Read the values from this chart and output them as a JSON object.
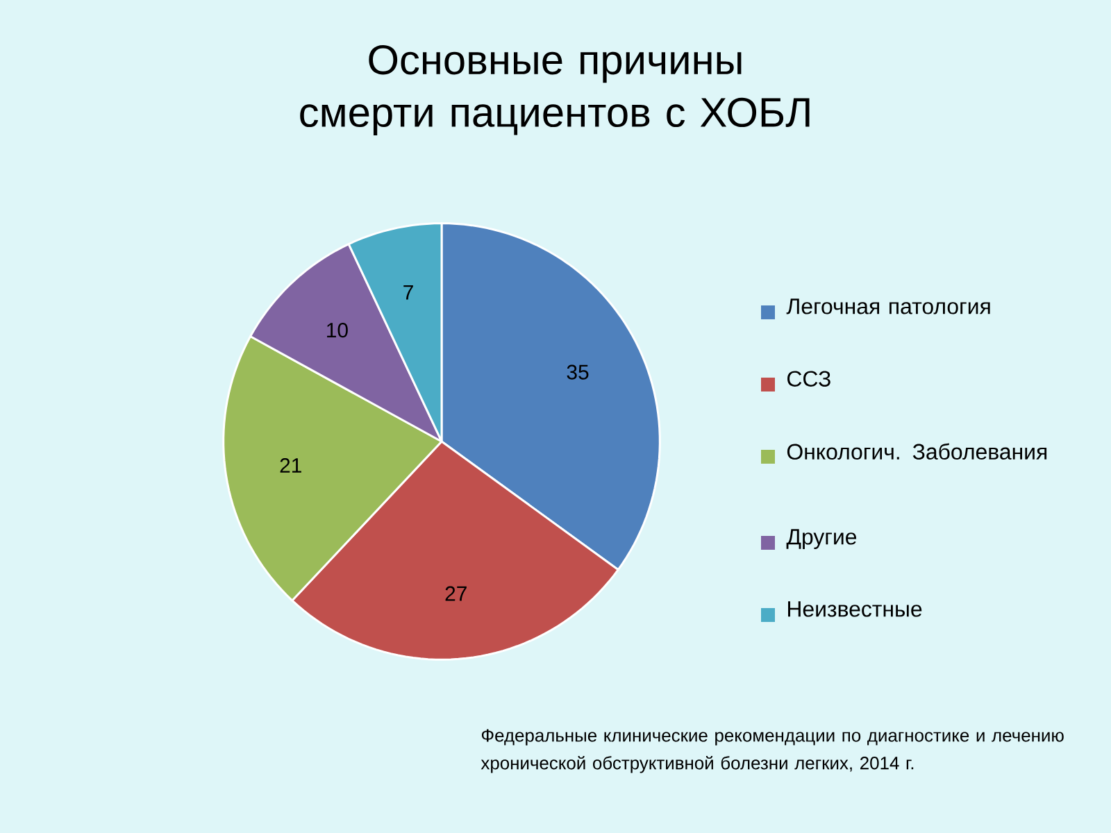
{
  "chart_data": {
    "type": "pie",
    "title": "Основные причины смерти пациентов с ХОБЛ",
    "categories": [
      "Легочная патология",
      "ССЗ",
      "Онкологич. Заболевания",
      "Другие",
      "Неизвестные"
    ],
    "values": [
      35,
      27,
      21,
      10,
      7
    ],
    "colors": [
      "#4f81bd",
      "#c0504d",
      "#9bbb59",
      "#8064a2",
      "#4bacc6"
    ],
    "data_labels": true,
    "legend": "right",
    "annotations": [
      "Федеральные клинические рекомендации по диагностике и лечению хронической обструктивной болезни легких, 2014 г."
    ]
  }
}
